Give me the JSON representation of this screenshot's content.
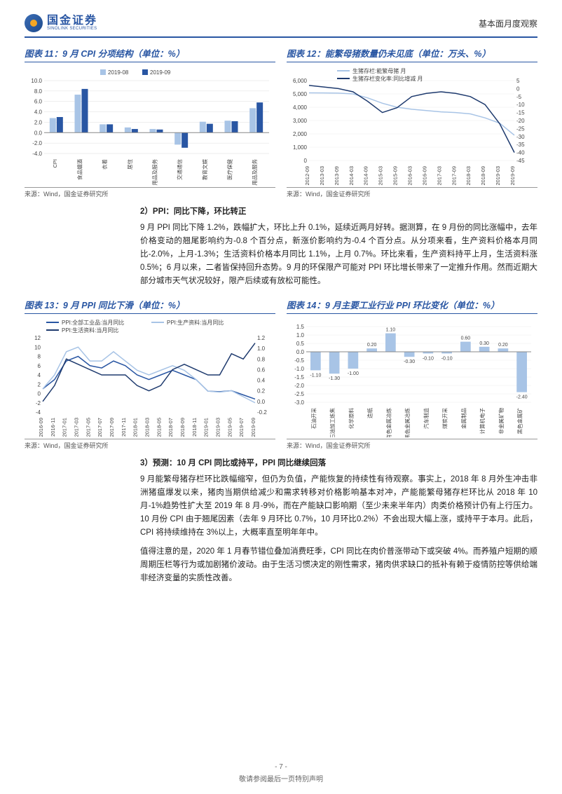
{
  "header": {
    "logo_cn": "国金证券",
    "logo_en": "SINOLINK SECURITIES",
    "right": "基本面月度观察"
  },
  "chart11": {
    "type": "bar",
    "title": "图表 11：9 月 CPI 分项结构（单位：%）",
    "source": "来源：Wind，国金证券研究所",
    "categories": [
      "CPI",
      "食品烟酒",
      "衣着",
      "居住",
      "生活用品及服务",
      "交通通信",
      "教育文娱",
      "医疗保健",
      "其他用品及服务"
    ],
    "series": [
      {
        "name": "2019-08",
        "color": "#a8c4e6",
        "values": [
          2.8,
          7.3,
          1.6,
          1.0,
          0.7,
          -2.3,
          2.1,
          2.3,
          4.7
        ]
      },
      {
        "name": "2019-09",
        "color": "#2956a3",
        "values": [
          3.0,
          8.4,
          1.6,
          0.7,
          0.6,
          -2.9,
          1.7,
          2.2,
          5.8
        ]
      }
    ],
    "ylim": [
      -4,
      10
    ],
    "ytick_step": 2,
    "bg": "#ffffff"
  },
  "chart12": {
    "type": "line-dual",
    "title": "图表 12：能繁母猪数量仍未见底（单位：万头、%）",
    "source": "来源：Wind，国金证券研究所",
    "x_labels": [
      "2012-09",
      "2013-03",
      "2013-09",
      "2014-03",
      "2014-09",
      "2015-03",
      "2015-09",
      "2016-03",
      "2016-09",
      "2017-03",
      "2017-09",
      "2018-03",
      "2018-09",
      "2019-03",
      "2019-09"
    ],
    "series": [
      {
        "name": "生猪存栏:能繁母猪 月",
        "color": "#a8c4e6",
        "axis": "left",
        "values": [
          5080,
          5070,
          5060,
          5000,
          4700,
          4300,
          4000,
          3850,
          3750,
          3650,
          3600,
          3500,
          3200,
          2800,
          1900
        ]
      },
      {
        "name": "生猪存栏变化率:同比增减 月",
        "color": "#1e3a6e",
        "axis": "right",
        "values": [
          2,
          1,
          0,
          -2,
          -8,
          -15,
          -12,
          -5,
          -3,
          -2,
          -3,
          -5,
          -10,
          -22,
          -40
        ]
      }
    ],
    "ylim_left": [
      0,
      6000
    ],
    "ytick_left": 1000,
    "ylim_right": [
      -45,
      5
    ],
    "ytick_right": 5,
    "bg": "#ffffff"
  },
  "section2": {
    "heading": "2）PPI：同比下降，环比转正",
    "body": "9 月 PPI 同比下降 1.2%，跌幅扩大，环比上升 0.1%，延续近两月好转。据测算，在 9 月份的同比涨幅中，去年价格变动的翘尾影响约为-0.8 个百分点，新涨价影响约为-0.4 个百分点。从分项来看，生产资料价格本月同比-2.0%，上月-1.3%；生活资料价格本月同比 1.1%，上月 0.7%。环比来看，生产资料持平上月，生活资料涨 0.5%；6 月以来，二者皆保持回升态势。9 月的环保限产可能对 PPI 环比增长带来了一定推升作用。然而近期大部分城市天气状况较好，限产后续或有放松可能性。"
  },
  "chart13": {
    "type": "line-dual",
    "title": "图表 13：9 月 PPI 同比下滑（单位：%）",
    "source": "来源：Wind，国金证券研究所",
    "x_labels": [
      "2016-09",
      "2016-11",
      "2017-01",
      "2017-03",
      "2017-05",
      "2017-07",
      "2017-09",
      "2017-11",
      "2018-01",
      "2018-03",
      "2018-05",
      "2018-07",
      "2018-09",
      "2018-11",
      "2019-01",
      "2019-03",
      "2019-05",
      "2019-07",
      "2019-09"
    ],
    "series": [
      {
        "name": "PPI:全部工业品:当月同比",
        "color": "#2956a3",
        "axis": "left",
        "values": [
          1,
          3,
          7,
          8,
          6,
          5.5,
          7,
          6,
          4,
          3,
          4,
          5,
          4,
          3,
          0.5,
          0.4,
          0.6,
          -0.3,
          -1.2
        ]
      },
      {
        "name": "PPI:生产资料:当月同比",
        "color": "#a8c4e6",
        "axis": "left",
        "values": [
          1,
          4,
          9,
          10,
          7,
          7,
          9,
          7,
          5,
          4,
          5,
          6,
          5,
          3,
          0.5,
          0.3,
          0.6,
          -0.7,
          -2.0
        ]
      },
      {
        "name": "PPI:生活资料:当月同比",
        "color": "#1e3a6e",
        "axis": "right",
        "values": [
          0.0,
          0.3,
          0.8,
          0.7,
          0.6,
          0.5,
          0.5,
          0.5,
          0.3,
          0.2,
          0.3,
          0.6,
          0.7,
          0.6,
          0.5,
          0.5,
          0.9,
          0.8,
          1.1
        ]
      }
    ],
    "ylim_left": [
      -4,
      12
    ],
    "ytick_left": 2,
    "ylim_right": [
      -0.2,
      1.2
    ],
    "ytick_right": 0.2,
    "bg": "#ffffff"
  },
  "chart14": {
    "type": "bar-labeled",
    "title": "图表 14：9 月主要工业行业 PPI 环比变化（单位：%）",
    "source": "来源：Wind，国金证券研究所",
    "categories": [
      "石油开采",
      "石油加工炼焦",
      "化学原料",
      "造纸",
      "有色金属冶炼",
      "黑色金属冶炼",
      "汽车制造",
      "煤炭开采",
      "金属制品",
      "计算机电子",
      "非金属矿物",
      "黑色金属矿"
    ],
    "values": [
      -1.1,
      -1.3,
      -1.0,
      0.2,
      1.1,
      -0.3,
      -0.1,
      -0.1,
      0.6,
      0.3,
      0.2,
      -2.4
    ],
    "color": "#a8c4e6",
    "ylim": [
      -3.0,
      1.5
    ],
    "ytick_step": 0.5,
    "bg": "#ffffff"
  },
  "section3": {
    "heading": "3）预测：10 月 CPI 同比或持平，PPI 同比继续回落",
    "body1": "9 月能繁母猪存栏环比跌幅缩窄，但仍为负值，产能恢复的持续性有待观察。事实上，2018 年 8 月外生冲击非洲猪瘟爆发以来，猪肉当期供给减少和需求转移对价格影响基本对冲，产能能繁母猪存栏环比从 2018 年 10 月-1%趋势性扩大至 2019 年 8 月-9%，而在产能缺口影响期（至少未来半年内）肉类价格预计仍有上行压力。10 月份 CPI 由于翘尾因素（去年 9 月环比 0.7%，10 月环比0.2%）不会出现大幅上涨，或持平于本月。此后，CPI 将持续维持在 3%以上，大概率直至明年年中。",
    "body2": "值得注意的是，2020 年 1 月春节错位叠加消费旺季，CPI 同比在肉价普涨带动下或突破 4%。而养殖户短期的顺周期压栏等行为或加剧猪价波动。由于生活习惯决定的刚性需求，猪肉供求缺口的抵补有赖于疫情防控等供给端非经济变量的实质性改善。"
  },
  "footer": {
    "page": "- 7 -",
    "disclaimer": "敬请参阅最后一页特别声明"
  }
}
